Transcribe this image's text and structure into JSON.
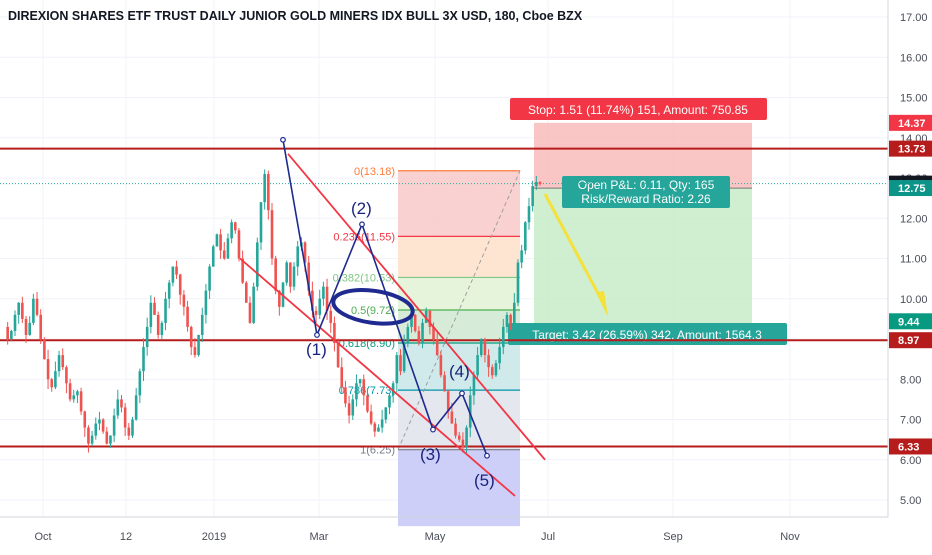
{
  "chart_data": {
    "type": "candlestick",
    "title": "DIREXION SHARES ETF TRUST DAILY JUNIOR GOLD MINERS IDX BULL 3X USD, 180, Cboe BZX",
    "y_axis": {
      "ylim": [
        4.6,
        17.35
      ],
      "ticks": [
        "5.00",
        "6.00",
        "7.00",
        "8.00",
        "9.00",
        "10.00",
        "11.00",
        "12.00",
        "13.00",
        "14.00",
        "15.00",
        "16.00",
        "17.00"
      ]
    },
    "x_axis": {
      "ticks": [
        "Oct",
        "12",
        "2019",
        "Mar",
        "May",
        "Jul",
        "Sep",
        "Nov"
      ]
    },
    "price_path": [
      [
        9.3,
        9.0,
        9.2,
        9.6,
        9.9,
        9.5,
        9.1,
        9.4,
        10.0,
        9.6,
        9.0,
        8.5,
        8.0,
        7.8,
        8.2,
        8.6,
        8.3,
        7.9,
        7.5,
        7.6,
        7.7,
        7.2,
        6.8,
        6.4,
        6.6,
        6.9,
        7.0,
        6.7,
        6.4,
        6.6,
        7.1,
        7.5,
        7.3,
        6.8,
        6.6,
        7.0,
        7.6,
        8.2,
        8.8,
        9.3,
        9.9,
        9.6,
        9.1,
        9.4,
        10.0,
        10.4,
        10.8,
        10.6,
        10.1,
        9.8,
        9.3,
        8.8,
        8.6,
        9.1,
        9.6,
        10.2,
        10.8,
        11.3,
        11.6,
        11.2,
        11.0,
        11.5,
        11.9,
        11.7,
        11.0,
        10.4,
        9.9,
        9.4,
        10.3,
        11.4,
        12.4,
        13.1,
        12.2,
        11.0,
        10.2,
        9.8,
        10.4,
        10.9,
        10.3,
        10.8,
        11.3,
        11.4,
        10.9,
        10.2,
        9.7,
        9.6,
        10.0,
        10.3,
        9.7,
        9.4,
        8.9,
        8.3,
        7.8,
        7.4,
        7.1,
        7.5,
        7.9,
        8.0,
        7.6,
        7.2,
        6.9,
        6.7,
        6.8,
        7.0,
        7.3,
        7.6,
        7.9,
        8.6,
        8.2,
        8.9,
        9.3,
        9.6,
        9.2,
        8.9,
        9.4,
        9.7,
        9.3,
        9.0,
        8.6,
        8.1,
        7.7,
        7.2,
        6.9,
        6.6,
        6.5,
        6.3,
        6.8,
        7.6,
        8.1,
        8.6,
        9.0,
        8.6,
        8.3,
        8.1,
        8.4,
        8.8,
        9.3,
        9.6,
        9.4,
        9.9,
        10.9,
        11.2,
        11.9,
        12.3,
        12.8,
        12.9,
        12.85
      ]
    ],
    "horizontal_levels": [
      {
        "price": 13.73,
        "label": "13.73"
      },
      {
        "price": 8.97,
        "label": "8.97"
      },
      {
        "price": 6.33,
        "label": "6.33"
      }
    ],
    "price_labels": [
      {
        "price": 14.37,
        "label": "14.37",
        "color": "#f23645"
      },
      {
        "price": 12.86,
        "label": "12.86",
        "color": "#131722"
      },
      {
        "price": 12.75,
        "label": "12.75",
        "color": "#0d9488"
      },
      {
        "price": 9.44,
        "label": "9.44",
        "color": "#089981"
      }
    ],
    "fibonacci": [
      {
        "text": "0(13.18)",
        "price": 13.18,
        "color": "#ff7b39"
      },
      {
        "text": "0.236(11.55)",
        "price": 11.55,
        "color": "#f23645"
      },
      {
        "text": "0.382(10.53)",
        "price": 10.53,
        "color": "#81c784"
      },
      {
        "text": "0.5(9.72)",
        "price": 9.72,
        "color": "#4caf50"
      },
      {
        "text": "0.618(8.90)",
        "price": 8.9,
        "color": "#089981"
      },
      {
        "text": "0.786(7.73)",
        "price": 7.73,
        "color": "#0097a7"
      },
      {
        "text": "1(6.25)",
        "price": 6.25,
        "color": "#787b86"
      }
    ],
    "waves": [
      "(1)",
      "(2)",
      "(3)",
      "(4)",
      "(5)"
    ],
    "position": {
      "stop_text": "Stop: 1.51 (11.74%) 151, Amount: 750.85",
      "pnl_line1": "Open P&L: 0.11, Qty: 165",
      "pnl_line2": "Risk/Reward Ratio: 2.26",
      "target_text": "Target: 3.42 (26.59%) 342, Amount: 1564.3"
    },
    "colors": {
      "up": "#26a69a",
      "down": "#ef5350",
      "level": "#b71c1c",
      "channel": "#f23645",
      "wave": "#1e2a8f",
      "arrow": "#f5e13b"
    }
  }
}
